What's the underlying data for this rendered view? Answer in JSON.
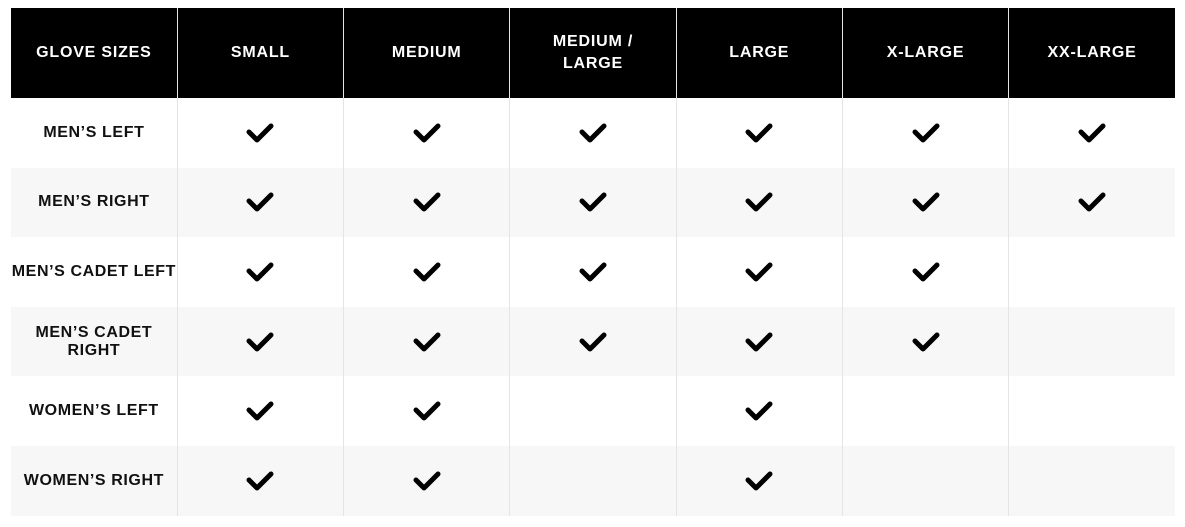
{
  "table": {
    "header": [
      "GLOVE SIZES",
      "SMALL",
      "MEDIUM",
      "MEDIUM / LARGE",
      "LARGE",
      "X-LARGE",
      "XX-LARGE"
    ],
    "rows": [
      {
        "label": "MEN’S LEFT",
        "available": [
          true,
          true,
          true,
          true,
          true,
          true
        ]
      },
      {
        "label": "MEN’S RIGHT",
        "available": [
          true,
          true,
          true,
          true,
          true,
          true
        ]
      },
      {
        "label": "MEN’S CADET LEFT",
        "available": [
          true,
          true,
          true,
          true,
          true,
          false
        ]
      },
      {
        "label": "MEN’S CADET RIGHT",
        "available": [
          true,
          true,
          true,
          true,
          true,
          false
        ]
      },
      {
        "label": "WOMEN’S LEFT",
        "available": [
          true,
          true,
          false,
          true,
          false,
          false
        ]
      },
      {
        "label": "WOMEN’S RIGHT",
        "available": [
          true,
          true,
          false,
          true,
          false,
          false
        ]
      }
    ]
  }
}
